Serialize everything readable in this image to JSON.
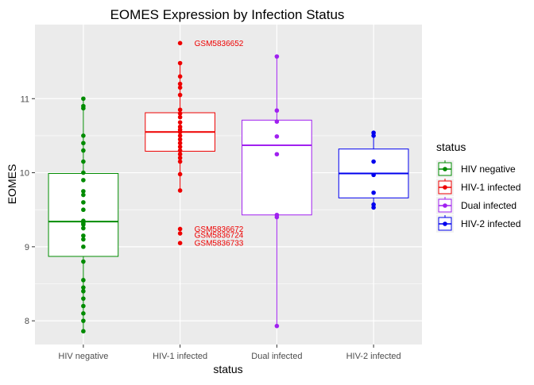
{
  "chart_data": {
    "type": "box",
    "title": "EOMES Expression by Infection Status",
    "xlabel": "status",
    "ylabel": "EOMES",
    "categories": [
      "HIV negative",
      "HIV-1 infected",
      "Dual infected",
      "HIV-2 infected"
    ],
    "ylim": [
      7.68,
      12.0
    ],
    "yticks": [
      8,
      9,
      10,
      11
    ],
    "ytick_labels": [
      "8",
      "9",
      "10",
      "11"
    ],
    "grid": true,
    "legend": {
      "title": "status",
      "position": "right",
      "items": [
        "HIV negative",
        "HIV-1 infected",
        "Dual infected",
        "HIV-2 infected"
      ]
    },
    "colors": {
      "HIV negative": "#008B00",
      "HIV-1 infected": "#EE0000",
      "Dual infected": "#A020F0",
      "HIV-2 infected": "#0000EE",
      "panel": "#EBEBEB",
      "grid": "#FFFFFF"
    },
    "boxes": [
      {
        "category": "HIV negative",
        "whisker_low": 7.86,
        "q1": 8.87,
        "median": 9.34,
        "q3": 9.99,
        "whisker_high": 11.0
      },
      {
        "category": "HIV-1 infected",
        "whisker_low": 9.76,
        "q1": 10.29,
        "median": 10.55,
        "q3": 10.81,
        "whisker_high": 11.48
      },
      {
        "category": "Dual infected",
        "whisker_low": 7.93,
        "q1": 9.43,
        "median": 10.37,
        "q3": 10.71,
        "whisker_high": 11.57
      },
      {
        "category": "HIV-2 infected",
        "whisker_low": 9.53,
        "q1": 9.66,
        "median": 9.99,
        "q3": 10.32,
        "whisker_high": 10.54
      }
    ],
    "points": [
      {
        "category": "HIV negative",
        "values": [
          11.0,
          10.9,
          10.87,
          10.5,
          10.4,
          10.3,
          10.15,
          10.0,
          9.9,
          9.75,
          9.7,
          9.6,
          9.5,
          9.35,
          9.32,
          9.3,
          9.25,
          9.15,
          9.1,
          9.0,
          8.8,
          8.55,
          8.45,
          8.4,
          8.3,
          8.2,
          8.1,
          8.0,
          7.86
        ]
      },
      {
        "category": "HIV-1 infected",
        "values": [
          11.75,
          11.48,
          11.3,
          11.2,
          11.15,
          11.05,
          10.85,
          10.8,
          10.75,
          10.68,
          10.62,
          10.58,
          10.55,
          10.5,
          10.45,
          10.4,
          10.35,
          10.3,
          10.25,
          10.2,
          10.15,
          9.98,
          9.76,
          9.24,
          9.18,
          9.05
        ]
      },
      {
        "category": "Dual infected",
        "values": [
          11.57,
          10.84,
          10.69,
          10.49,
          10.25,
          9.43,
          9.4,
          7.93
        ]
      },
      {
        "category": "HIV-2 infected",
        "values": [
          10.54,
          10.5,
          10.15,
          9.97,
          9.73,
          9.57,
          9.53
        ]
      }
    ],
    "annotations": [
      {
        "category": "HIV-1 infected",
        "y": 11.75,
        "text": "GSM5836652"
      },
      {
        "category": "HIV-1 infected",
        "y": 9.24,
        "text": "GSM5836672"
      },
      {
        "category": "HIV-1 infected",
        "y": 9.16,
        "text": "GSM5836724"
      },
      {
        "category": "HIV-1 infected",
        "y": 9.05,
        "text": "GSM5836733"
      }
    ]
  }
}
